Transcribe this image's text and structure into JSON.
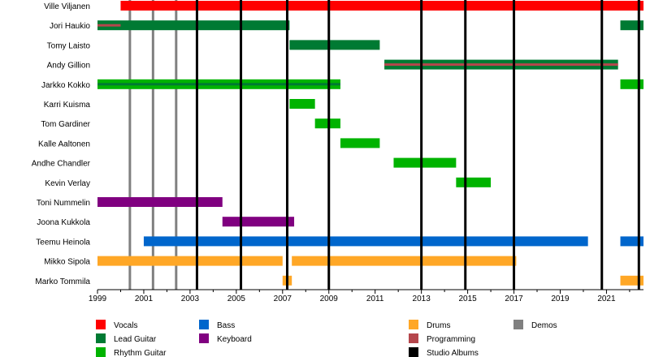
{
  "chart_data": {
    "type": "timeline",
    "title": "",
    "xlabel": "",
    "ylabel": "",
    "xlim": [
      1999,
      2022.6
    ],
    "x_ticks": [
      1999,
      2001,
      2003,
      2005,
      2007,
      2009,
      2011,
      2013,
      2015,
      2017,
      2019,
      2021
    ],
    "members": [
      "Ville Viljanen",
      "Jori Haukio",
      "Tomy Laisto",
      "Andy Gillion",
      "Jarkko Kokko",
      "Karri Kuisma",
      "Tom Gardiner",
      "Kalle Aaltonen",
      "Andhe Chandler",
      "Kevin Verlay",
      "Toni Nummelin",
      "Joona Kukkola",
      "Teemu Heinola",
      "Mikko Sipola",
      "Marko Tommila"
    ],
    "roles": [
      {
        "key": "vocals",
        "name": "Vocals",
        "color": "#ff0000"
      },
      {
        "key": "lead",
        "name": "Lead Guitar",
        "color": "#007a33"
      },
      {
        "key": "rhythm",
        "name": "Rhythm Guitar",
        "color": "#00b300"
      },
      {
        "key": "bass",
        "name": "Bass",
        "color": "#0066cc"
      },
      {
        "key": "keyboard",
        "name": "Keyboard",
        "color": "#800080"
      },
      {
        "key": "drums",
        "name": "Drums",
        "color": "#ffa726"
      },
      {
        "key": "programming",
        "name": "Programming",
        "color": "#b5464c"
      },
      {
        "key": "studio",
        "name": "Studio Albums",
        "color": "#000000"
      },
      {
        "key": "demos",
        "name": "Demos",
        "color": "#808080"
      }
    ],
    "bars": [
      {
        "member": 0,
        "role": "vocals",
        "start": 2000.0,
        "end": 2022.6
      },
      {
        "member": 1,
        "role": "lead",
        "start": 1999.0,
        "end": 2007.3
      },
      {
        "member": 1,
        "role": "programming",
        "start": 1999.0,
        "end": 2000.0,
        "overlay": true
      },
      {
        "member": 1,
        "role": "lead",
        "start": 2021.6,
        "end": 2022.6
      },
      {
        "member": 2,
        "role": "lead",
        "start": 2007.3,
        "end": 2011.2
      },
      {
        "member": 3,
        "role": "lead",
        "start": 2011.4,
        "end": 2021.5
      },
      {
        "member": 3,
        "role": "programming",
        "start": 2011.4,
        "end": 2021.5,
        "overlay": true
      },
      {
        "member": 4,
        "role": "rhythm",
        "start": 1999.0,
        "end": 2009.5
      },
      {
        "member": 4,
        "role": "lead",
        "start": 1999.0,
        "end": 2001.0,
        "overlay": true
      },
      {
        "member": 4,
        "role": "lead",
        "start": 2001.0,
        "end": 2009.5,
        "overlay": true
      },
      {
        "member": 4,
        "role": "rhythm",
        "start": 2021.6,
        "end": 2022.6
      },
      {
        "member": 5,
        "role": "rhythm",
        "start": 2007.3,
        "end": 2008.4
      },
      {
        "member": 6,
        "role": "rhythm",
        "start": 2008.4,
        "end": 2009.5
      },
      {
        "member": 7,
        "role": "rhythm",
        "start": 2009.5,
        "end": 2011.2
      },
      {
        "member": 8,
        "role": "rhythm",
        "start": 2011.8,
        "end": 2014.5
      },
      {
        "member": 9,
        "role": "rhythm",
        "start": 2014.5,
        "end": 2016.0
      },
      {
        "member": 10,
        "role": "keyboard",
        "start": 1999.0,
        "end": 2004.4
      },
      {
        "member": 11,
        "role": "keyboard",
        "start": 2004.4,
        "end": 2007.5
      },
      {
        "member": 12,
        "role": "bass",
        "start": 2001.0,
        "end": 2020.2
      },
      {
        "member": 12,
        "role": "bass",
        "start": 2021.6,
        "end": 2022.6
      },
      {
        "member": 13,
        "role": "drums",
        "start": 1999.0,
        "end": 2007.0
      },
      {
        "member": 13,
        "role": "drums",
        "start": 2007.4,
        "end": 2017.1
      },
      {
        "member": 14,
        "role": "drums",
        "start": 2007.0,
        "end": 2007.4
      },
      {
        "member": 14,
        "role": "drums",
        "start": 2021.6,
        "end": 2022.6
      }
    ],
    "studio_albums": [
      2003.3,
      2005.2,
      2007.2,
      2009.0,
      2013.0,
      2014.9,
      2017.0,
      2020.8,
      2022.4
    ],
    "demos": [
      2000.4,
      2001.4,
      2002.4
    ],
    "legend_position": "bottom",
    "legend_columns": [
      [
        "vocals",
        "lead",
        "rhythm"
      ],
      [
        "bass",
        "keyboard"
      ],
      [],
      [
        "drums",
        "programming",
        "studio"
      ],
      [
        "demos"
      ]
    ]
  }
}
